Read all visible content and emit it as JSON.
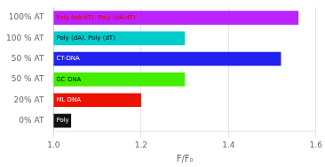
{
  "chart_data": {
    "type": "bar",
    "orientation": "horizontal",
    "categories": [
      "0% AT",
      "20% AT",
      "50 % AT",
      "50 % AT",
      "100 % AT",
      "100% AT"
    ],
    "values": [
      1.04,
      1.2,
      1.3,
      1.52,
      1.3,
      1.56
    ],
    "colors": [
      "#111111",
      "#ee1100",
      "#44ee00",
      "#2222ee",
      "#00cccc",
      "#bb22ff"
    ],
    "annotations": [
      {
        "text": "Poly (dG). Poly (dC)",
        "color": "#ffffff"
      },
      {
        "text": "ML DNA",
        "color": "#ffffff"
      },
      {
        "text": "GC DNA",
        "color": "#000000"
      },
      {
        "text": "CT-DNA",
        "color": "#ffffff"
      },
      {
        "text": "Poly (dA). Poly (dT)",
        "color": "#000000"
      },
      {
        "text": "Poly (dA-dT). Poly (dA-dT)",
        "color": "#dd0000"
      }
    ],
    "x_label": "F/F₀",
    "xlim": [
      1.0,
      1.6
    ],
    "xticks": [
      {
        "value": 1.0,
        "label": "1.0"
      },
      {
        "value": 1.2,
        "label": "1.2"
      },
      {
        "value": 1.4,
        "label": "1.4"
      },
      {
        "value": 1.6,
        "label": "1.6"
      }
    ],
    "grid": true
  }
}
